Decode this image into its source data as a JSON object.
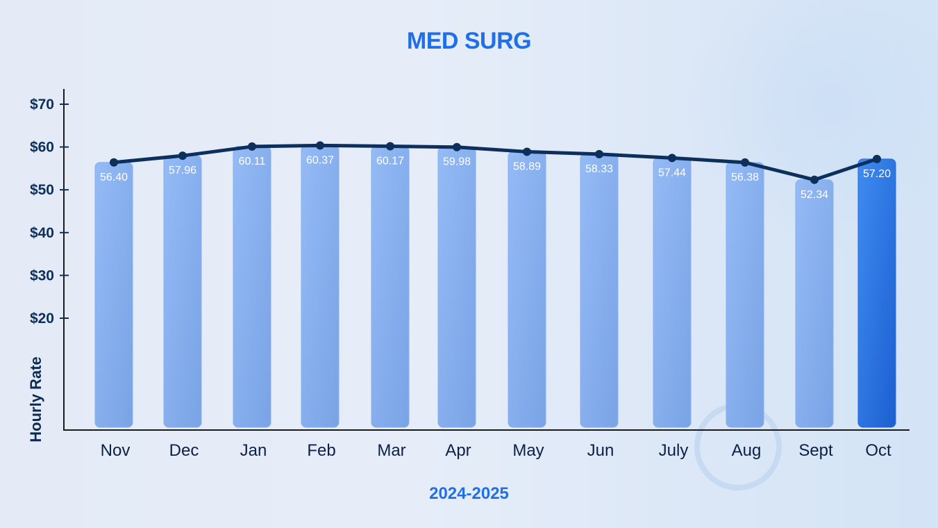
{
  "title": "MED SURG",
  "x_axis_title": "2024-2025",
  "y_axis_title": "Hourly Rate",
  "colors": {
    "title": "#1f6fe8",
    "bar": "#8ab2ef",
    "bar_highlight": "#2f74e0",
    "line": "#0d2f5c",
    "axis": "#1a1a1a"
  },
  "chart_data": {
    "type": "bar",
    "title": "MED SURG",
    "xlabel": "2024-2025",
    "ylabel": "Hourly Rate",
    "categories": [
      "Nov",
      "Dec",
      "Jan",
      "Feb",
      "Mar",
      "Apr",
      "May",
      "Jun",
      "July",
      "Aug",
      "Sept",
      "Oct"
    ],
    "values": [
      56.4,
      57.96,
      60.11,
      60.37,
      60.17,
      59.98,
      58.89,
      58.33,
      57.44,
      56.38,
      52.34,
      57.2
    ],
    "value_labels": [
      "56.40",
      "57.96",
      "60.11",
      "60.37",
      "60.17",
      "59.98",
      "58.89",
      "58.33",
      "57.44",
      "56.38",
      "52.34",
      "57.20"
    ],
    "overlay_line": true,
    "highlighted_category": "Oct",
    "yticks": [
      "$20",
      "$30",
      "$40",
      "$50",
      "$60",
      "$70"
    ],
    "ytick_values": [
      20,
      30,
      40,
      50,
      60,
      70
    ],
    "ylim": [
      0,
      70
    ],
    "grid": false,
    "legend": null
  }
}
